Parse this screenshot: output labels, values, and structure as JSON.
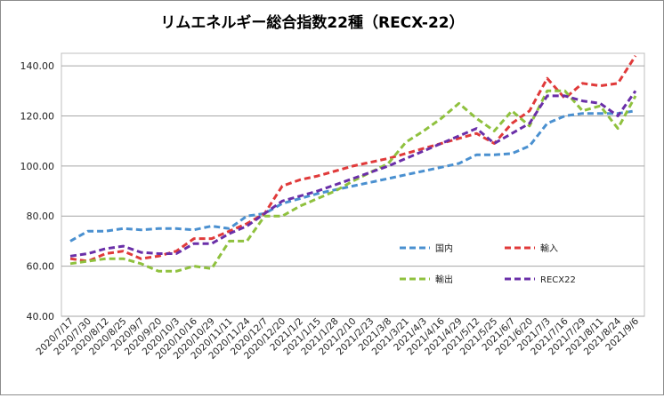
{
  "chart_data": {
    "type": "line",
    "title": "リムエネルギー総合指数22種（RECX-22）",
    "xlabel": "",
    "ylabel": "",
    "ylim": [
      40,
      145
    ],
    "yticks": [
      "40.00",
      "60.00",
      "80.00",
      "100.00",
      "120.00",
      "140.00"
    ],
    "ytick_values": [
      40,
      60,
      80,
      100,
      120,
      140
    ],
    "grid": true,
    "legend_position": "inside-right",
    "categories": [
      "2020/7/17",
      "2020/7/30",
      "2020/8/12",
      "2020/8/25",
      "2020/9/7",
      "2020/9/20",
      "2020/10/3",
      "2020/10/16",
      "2020/10/29",
      "2020/11/11",
      "2020/11/24",
      "2020/12/7",
      "2020/12/20",
      "2021/1/2",
      "2021/1/15",
      "2021/1/28",
      "2021/2/10",
      "2021/2/23",
      "2021/3/8",
      "2021/3/21",
      "2021/4/3",
      "2021/4/16",
      "2021/4/29",
      "2021/5/12",
      "2021/5/25",
      "2021/6/7",
      "2021/6/20",
      "2021/7/3",
      "2021/7/16",
      "2021/7/29",
      "2021/8/11",
      "2021/8/24",
      "2021/9/6"
    ],
    "series": [
      {
        "name": "国内",
        "color": "#4a90d0",
        "values": [
          70,
          74,
          74,
          75,
          74.5,
          75,
          75,
          74.5,
          76,
          75,
          80,
          81,
          85,
          87,
          89,
          90.5,
          92,
          93.5,
          95,
          96.5,
          98,
          99.5,
          101,
          104.5,
          104.5,
          105,
          108,
          117,
          120,
          121,
          121,
          121,
          122
        ]
      },
      {
        "name": "輸入",
        "color": "#e03a3a",
        "values": [
          63,
          62,
          65,
          66,
          63,
          64,
          66,
          71,
          71,
          74,
          77,
          81,
          92,
          94.5,
          96,
          98,
          100,
          101.5,
          103,
          105,
          107,
          109,
          111,
          113,
          109,
          117,
          122,
          135,
          127,
          133,
          132,
          133,
          144
        ]
      },
      {
        "name": "輸出",
        "color": "#8fc13e",
        "values": [
          61,
          62,
          63,
          63,
          61,
          58,
          58,
          60,
          59,
          70,
          70,
          80,
          80,
          84,
          87,
          90,
          94,
          97.5,
          101,
          109.5,
          114,
          119,
          125,
          119,
          114,
          122,
          116,
          130,
          130,
          122,
          124,
          115,
          128
        ]
      },
      {
        "name": "RECX22",
        "color": "#6a2fa8",
        "values": [
          64,
          65,
          67,
          68,
          65.5,
          65,
          65,
          69,
          69,
          73,
          76,
          81,
          86,
          88,
          90,
          92.5,
          95,
          97.5,
          100,
          103,
          106,
          109,
          112,
          115,
          109,
          113,
          117,
          128,
          128,
          126,
          125,
          120,
          130
        ]
      }
    ]
  }
}
